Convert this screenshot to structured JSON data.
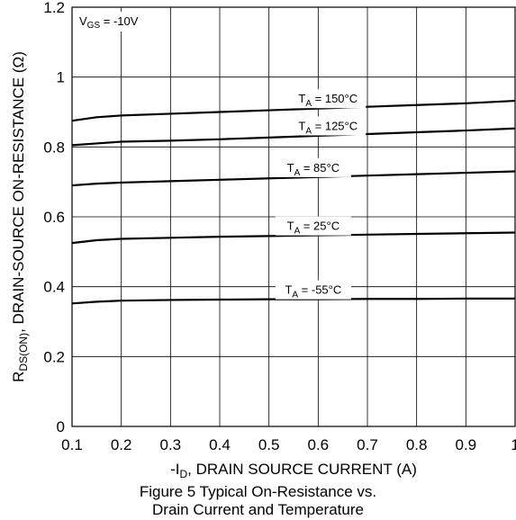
{
  "chart_data": {
    "type": "line",
    "xlabel_prefix": "-I",
    "xlabel_sub": "D",
    "xlabel_rest": ", DRAIN SOURCE CURRENT (A)",
    "ylabel_prefix": "R",
    "ylabel_sub": "DS(ON)",
    "ylabel_rest": ", DRAIN-SOURCE ON-RESISTANCE (Ω)",
    "xlim": [
      0.1,
      1.0
    ],
    "ylim": [
      0,
      1.2
    ],
    "x_ticks": [
      "0.1",
      "0.2",
      "0.3",
      "0.4",
      "0.5",
      "0.6",
      "0.7",
      "0.8",
      "0.9",
      "1"
    ],
    "y_ticks": [
      "0",
      "0.2",
      "0.4",
      "0.6",
      "0.8",
      "1",
      "1.2"
    ],
    "grid": true,
    "condition": {
      "prefix": "V",
      "sub": "GS",
      "rest": " = -10V"
    },
    "series": [
      {
        "name": "T_A = 150°C",
        "label_prefix": "T",
        "label_sub": "A",
        "label_rest": " = 150°C",
        "x": [
          0.1,
          0.15,
          0.2,
          0.3,
          0.4,
          0.5,
          0.6,
          0.7,
          0.8,
          0.9,
          1.0
        ],
        "y": [
          0.875,
          0.885,
          0.89,
          0.895,
          0.9,
          0.905,
          0.91,
          0.915,
          0.92,
          0.925,
          0.932
        ]
      },
      {
        "name": "T_A = 125°C",
        "label_prefix": "T",
        "label_sub": "A",
        "label_rest": " = 125°C",
        "x": [
          0.1,
          0.15,
          0.2,
          0.3,
          0.4,
          0.5,
          0.6,
          0.7,
          0.8,
          0.9,
          1.0
        ],
        "y": [
          0.805,
          0.81,
          0.815,
          0.818,
          0.822,
          0.827,
          0.832,
          0.837,
          0.842,
          0.847,
          0.853
        ]
      },
      {
        "name": "T_A = 85°C",
        "label_prefix": "T",
        "label_sub": "A",
        "label_rest": " = 85°C",
        "x": [
          0.1,
          0.15,
          0.2,
          0.3,
          0.4,
          0.5,
          0.6,
          0.7,
          0.8,
          0.9,
          1.0
        ],
        "y": [
          0.69,
          0.695,
          0.698,
          0.702,
          0.706,
          0.71,
          0.714,
          0.718,
          0.722,
          0.726,
          0.73
        ]
      },
      {
        "name": "T_A = 25°C",
        "label_prefix": "T",
        "label_sub": "A",
        "label_rest": " = 25°C",
        "x": [
          0.1,
          0.15,
          0.2,
          0.3,
          0.4,
          0.5,
          0.6,
          0.7,
          0.8,
          0.9,
          1.0
        ],
        "y": [
          0.525,
          0.533,
          0.537,
          0.54,
          0.543,
          0.545,
          0.547,
          0.549,
          0.551,
          0.553,
          0.555
        ]
      },
      {
        "name": "T_A = -55°C",
        "label_prefix": "T",
        "label_sub": "A",
        "label_rest": " = -55°C",
        "x": [
          0.1,
          0.15,
          0.2,
          0.3,
          0.4,
          0.5,
          0.6,
          0.7,
          0.8,
          0.9,
          1.0
        ],
        "y": [
          0.352,
          0.357,
          0.36,
          0.362,
          0.363,
          0.364,
          0.364,
          0.365,
          0.365,
          0.366,
          0.366
        ]
      }
    ]
  },
  "caption": {
    "line1": "Figure 5 Typical On-Resistance vs.",
    "line2": "Drain Current and Temperature"
  }
}
